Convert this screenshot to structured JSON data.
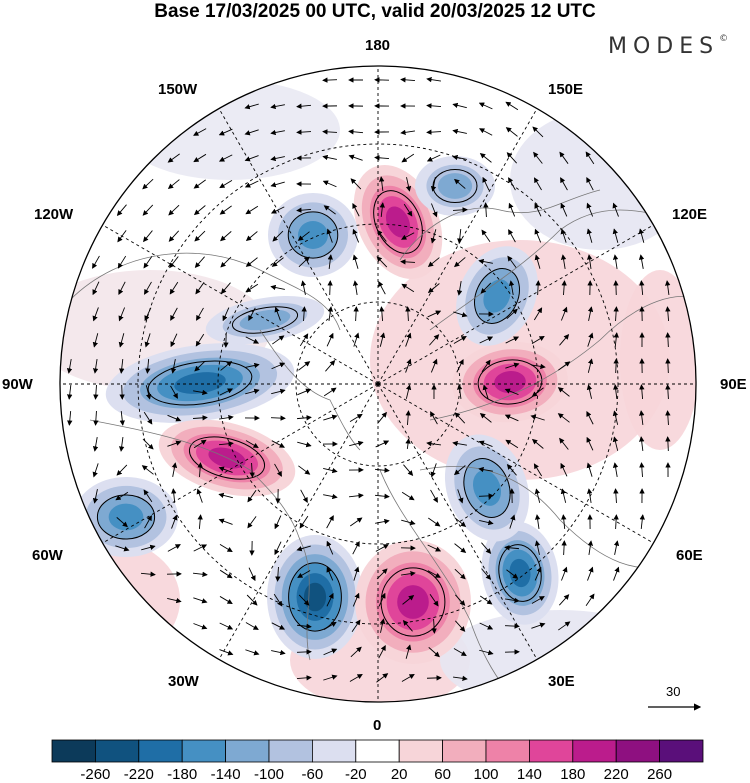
{
  "header": {
    "title": "Base 17/03/2025 00 UTC, valid 20/03/2025 12 UTC",
    "brand": "MODES",
    "brand_mark": "©"
  },
  "map": {
    "projection": "north-polar-stereographic",
    "longitude_labels": {
      "top": "180",
      "top_left": "150W",
      "top_right": "150E",
      "upper_left": "120W",
      "upper_right": "120E",
      "left": "90W",
      "right": "90E",
      "lower_left": "60W",
      "lower_right": "60E",
      "bottom_left": "30W",
      "bottom_right": "30E",
      "bottom": "0"
    },
    "anomaly_centers": [
      {
        "region": "Hudson Bay / N Canada",
        "sign": "negative",
        "level": -180
      },
      {
        "region": "N Atlantic (south of Greenland)",
        "sign": "negative",
        "level": -140
      },
      {
        "region": "NE Atlantic / W of Europe",
        "sign": "negative",
        "level": -220
      },
      {
        "region": "Central Europe",
        "sign": "positive",
        "level": 200
      },
      {
        "region": "W Russia",
        "sign": "negative",
        "level": -180
      },
      {
        "region": "Kara Sea / Scandinavia N",
        "sign": "negative",
        "level": -140
      },
      {
        "region": "W Siberia",
        "sign": "positive",
        "level": 180
      },
      {
        "region": "E Siberia",
        "sign": "negative",
        "level": -140
      },
      {
        "region": "Bering Strait / Chukotka",
        "sign": "positive",
        "level": 200
      },
      {
        "region": "Alaska",
        "sign": "negative",
        "level": -140
      },
      {
        "region": "E Canada / Labrador",
        "sign": "positive",
        "level": 180
      },
      {
        "region": "NE Pacific",
        "sign": "negative",
        "level": -100
      },
      {
        "region": "Mid Atlantic",
        "sign": "negative",
        "level": -100
      }
    ]
  },
  "reference_vector": {
    "label": "30"
  },
  "colorbar": {
    "labels": [
      "-260",
      "-220",
      "-180",
      "-140",
      "-100",
      "-60",
      "-20",
      "20",
      "60",
      "100",
      "140",
      "180",
      "220",
      "260"
    ],
    "colors": [
      "#0c3a5a",
      "#10527f",
      "#1f6ea6",
      "#4590c3",
      "#7ea9d2",
      "#b2c2e0",
      "#dcdff0",
      "#ffffff",
      "#f7d5d9",
      "#f2aebd",
      "#ee82a8",
      "#e0459a",
      "#bb1c8c",
      "#8e1080",
      "#5a0f7a"
    ]
  }
}
